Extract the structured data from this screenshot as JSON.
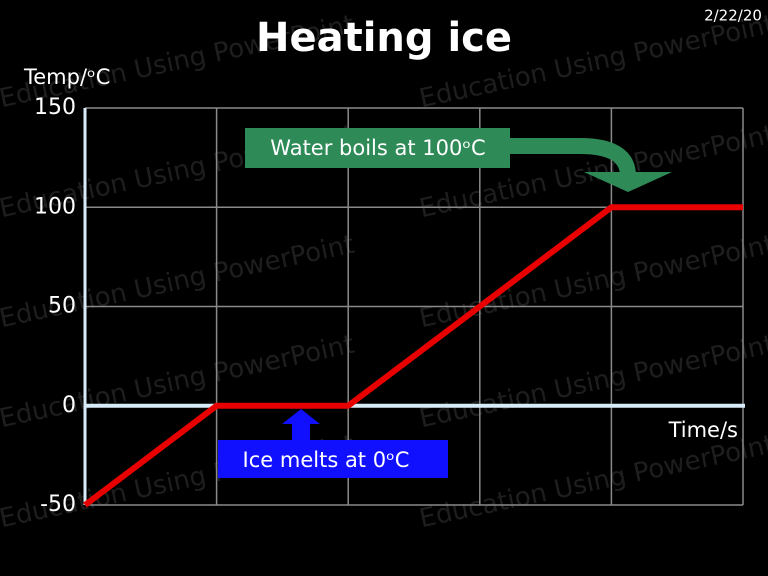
{
  "date": "2/22/20",
  "watermark": "Education Using PowerPoint",
  "chart_data": {
    "type": "line",
    "title": "Heating ice",
    "y_label": "Temp/ᵒC",
    "x_label": "Time/s",
    "categories": [
      null,
      null,
      null,
      null,
      null,
      null
    ],
    "values": [
      -50,
      0,
      0,
      50,
      100,
      100
    ],
    "color": "#e80000",
    "ylim": [
      -50,
      150
    ],
    "yticks": [
      -50,
      0,
      50,
      100,
      150
    ],
    "grid": true,
    "annotations": [
      "Water boils at 100ᵒC",
      "Ice melts at 0ᵒC"
    ]
  }
}
